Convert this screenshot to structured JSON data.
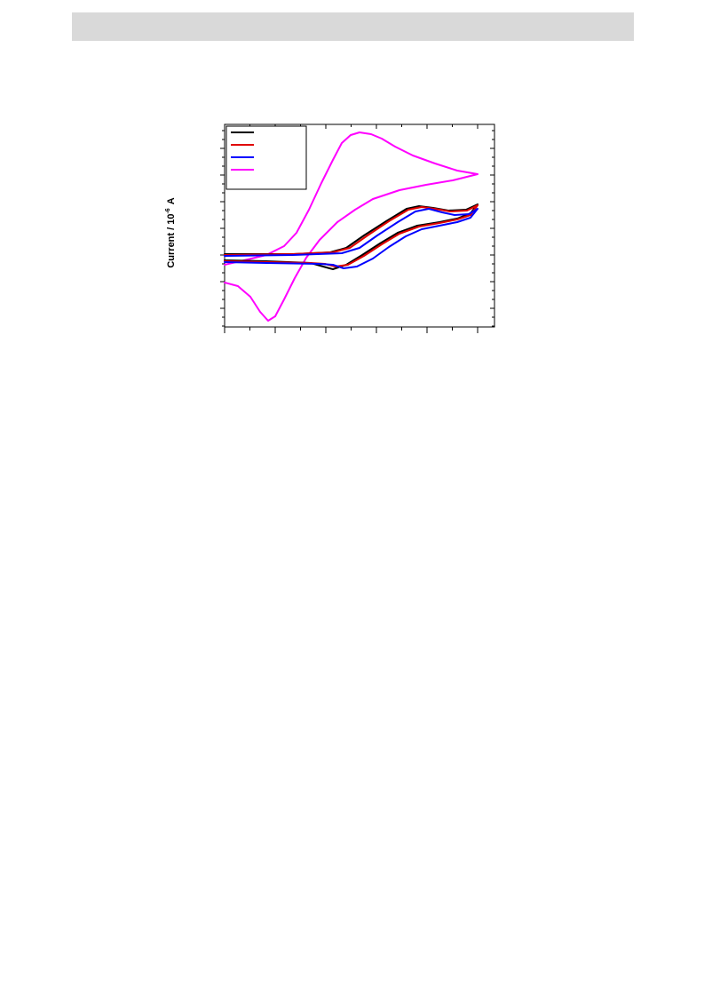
{
  "figure": {
    "y_label": {
      "text": "Current / 10",
      "exponent": "-6",
      "unit": "A"
    }
  }
}
